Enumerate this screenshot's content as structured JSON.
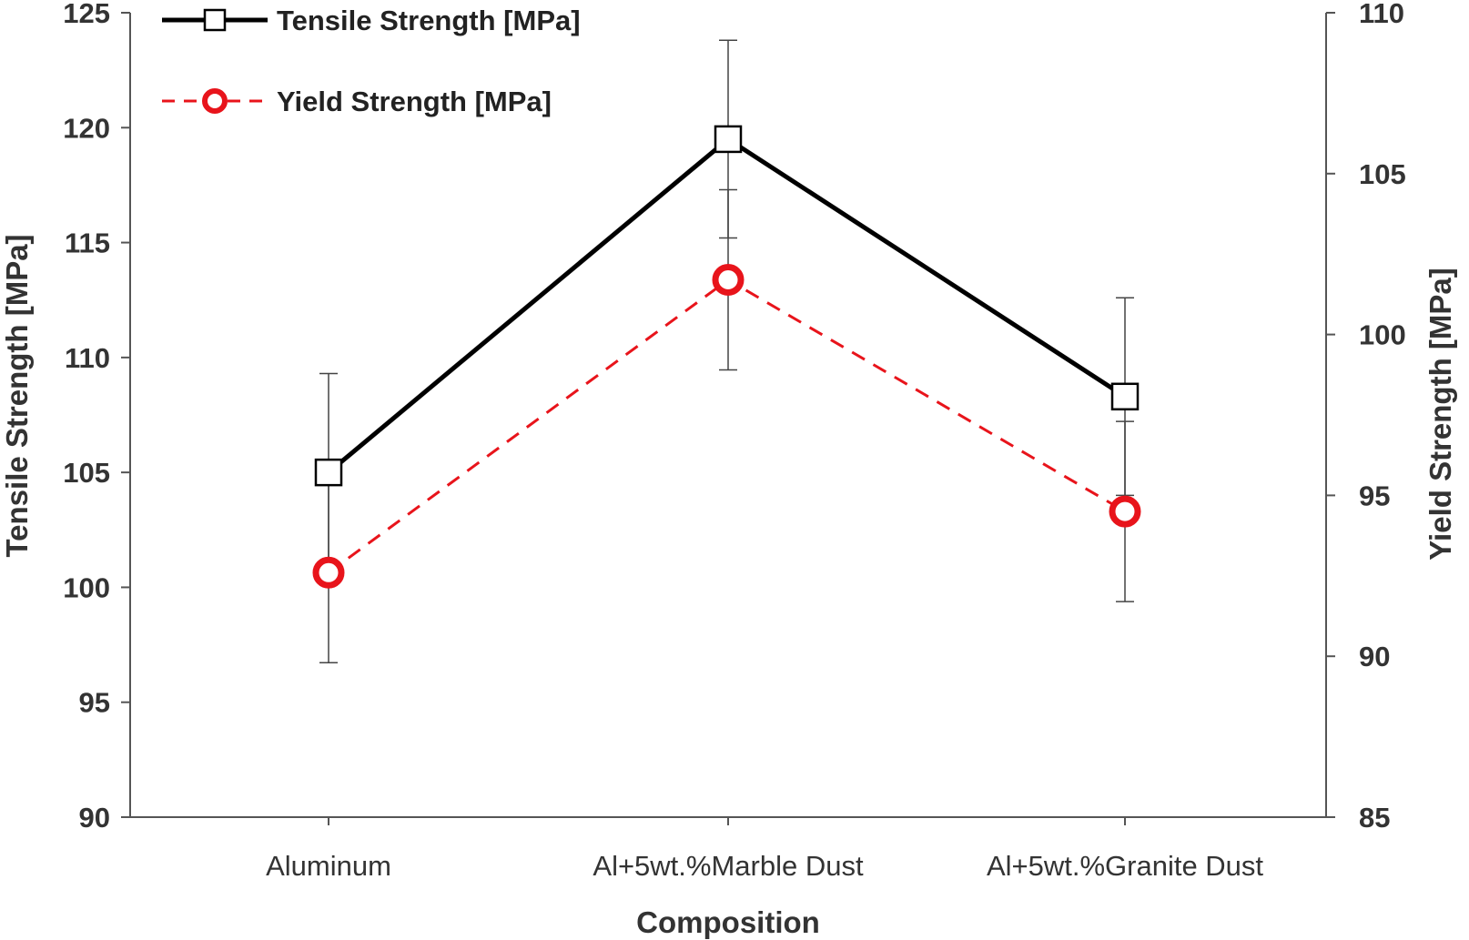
{
  "chart_data": {
    "type": "line",
    "categories": [
      "Aluminum",
      "Al+5wt.%Marble Dust",
      "Al+5wt.%Granite Dust"
    ],
    "xlabel": "Composition",
    "ylabel": "Tensile Strength [MPa]",
    "y2label": "Yield Strength [MPa]",
    "ylim": [
      90,
      125
    ],
    "yticks": [
      90,
      95,
      100,
      105,
      110,
      115,
      120,
      125
    ],
    "y2lim": [
      85,
      110
    ],
    "y2ticks": [
      85,
      90,
      95,
      100,
      105,
      110
    ],
    "grid": false,
    "legend_position": "top-left",
    "series": [
      {
        "name": "Tensile Strength [MPa]",
        "axis": "left",
        "values": [
          105.0,
          119.5,
          108.3
        ],
        "error": [
          4.3,
          4.3,
          4.3
        ],
        "color": "#000000",
        "line_style": "solid",
        "marker": "square"
      },
      {
        "name": "Yield Strength [MPa]",
        "axis": "right",
        "values": [
          92.6,
          101.7,
          94.5
        ],
        "error": [
          2.8,
          2.8,
          2.8
        ],
        "color": "#e8141b",
        "line_style": "dashed",
        "marker": "circle"
      }
    ]
  }
}
